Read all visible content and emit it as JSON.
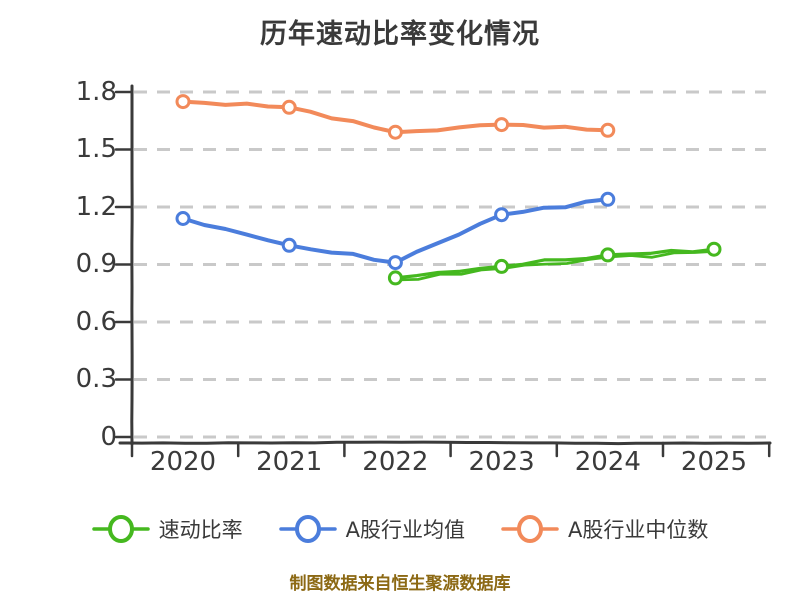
{
  "title": "历年速动比率变化情况",
  "caption": "制图数据来自恒生聚源数据库",
  "colors": {
    "text": "#3a3a3a",
    "grid": "#c9c9c9",
    "axis": "#3a3a3a",
    "caption": "#8c6914",
    "background": "#ffffff",
    "quick_ratio_green": "#45b81f",
    "industry_avg_blue": "#4b7ddc",
    "industry_median_orange": "#f28a5a"
  },
  "chart_data": {
    "type": "line",
    "title": "历年速动比率变化情况",
    "xlabel": "",
    "ylabel": "",
    "x_ticks": [
      "2020",
      "2021",
      "2022",
      "2023",
      "2024",
      "2025"
    ],
    "y_ticks": [
      "1.8",
      "1.5",
      "1.2",
      "0.9",
      "0.6",
      "0.3",
      "0"
    ],
    "ylim": [
      0,
      1.8
    ],
    "grid": "horizontal-dashed",
    "legend_position": "bottom",
    "style": "xkcd-sketch",
    "series": [
      {
        "name": "速动比率",
        "color": "#45b81f",
        "sketch_double": true,
        "x": [
          2022,
          2023,
          2024,
          2025
        ],
        "values": [
          0.83,
          0.89,
          0.95,
          0.98
        ]
      },
      {
        "name": "A股行业均值",
        "color": "#4b7ddc",
        "sketch_double": false,
        "x": [
          2020,
          2021,
          2022,
          2023,
          2024
        ],
        "values": [
          1.14,
          1.0,
          0.91,
          1.16,
          1.24
        ]
      },
      {
        "name": "A股行业中位数",
        "color": "#f28a5a",
        "sketch_double": false,
        "x": [
          2020,
          2021,
          2022,
          2023,
          2024
        ],
        "values": [
          1.75,
          1.72,
          1.59,
          1.63,
          1.6
        ]
      }
    ]
  },
  "legend": {
    "items": [
      {
        "label": "速动比率",
        "color": "#45b81f"
      },
      {
        "label": "A股行业均值",
        "color": "#4b7ddc"
      },
      {
        "label": "A股行业中位数",
        "color": "#f28a5a"
      }
    ]
  }
}
